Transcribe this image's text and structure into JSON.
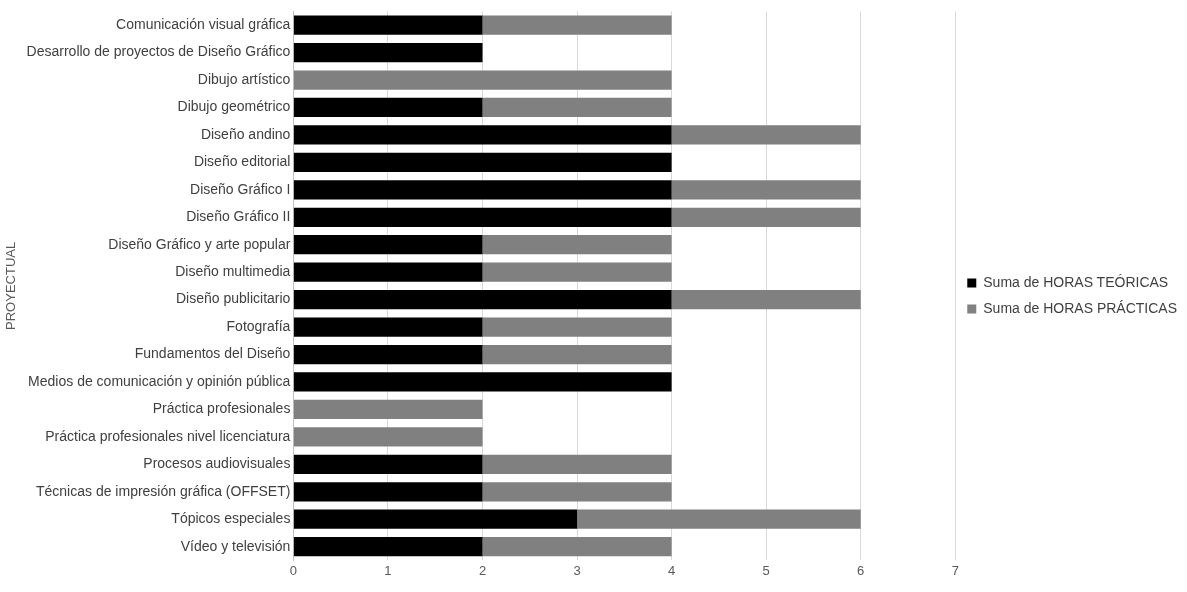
{
  "chart_data": {
    "type": "bar",
    "orientation": "horizontal",
    "stacked": true,
    "ylabel": "PROYECTUAL",
    "categories": [
      "Comunicación visual gráfica",
      "Desarrollo de proyectos de Diseño Gráfico",
      "Dibujo artístico",
      "Dibujo geométrico",
      "Diseño andino",
      "Diseño editorial",
      "Diseño Gráfico I",
      "Diseño Gráfico II",
      "Diseño Gráfico y arte popular",
      "Diseño multimedia",
      "Diseño publicitario",
      "Fotografía",
      "Fundamentos del Diseño",
      "Medios de comunicación y opinión pública",
      "Práctica profesionales",
      "Práctica profesionales nivel licenciatura",
      "Procesos audiovisuales",
      "Técnicas de impresión gráfica (OFFSET)",
      "Tópicos especiales",
      "Vídeo y televisión"
    ],
    "series": [
      {
        "name": "Suma de HORAS TEÓRICAS",
        "color": "#000000",
        "values": [
          2,
          2,
          0,
          2,
          4,
          4,
          4,
          4,
          2,
          2,
          4,
          2,
          2,
          4,
          0,
          0,
          2,
          2,
          3,
          2
        ]
      },
      {
        "name": "Suma de HORAS PRÁCTICAS",
        "color": "#808080",
        "values": [
          2,
          0,
          4,
          2,
          2,
          0,
          2,
          2,
          2,
          2,
          2,
          2,
          2,
          0,
          2,
          2,
          2,
          2,
          3,
          2
        ]
      }
    ],
    "xlim": [
      0,
      7
    ],
    "xticks": [
      0,
      1,
      2,
      3,
      4,
      5,
      6,
      7
    ],
    "grid": "x",
    "legend": "right"
  }
}
